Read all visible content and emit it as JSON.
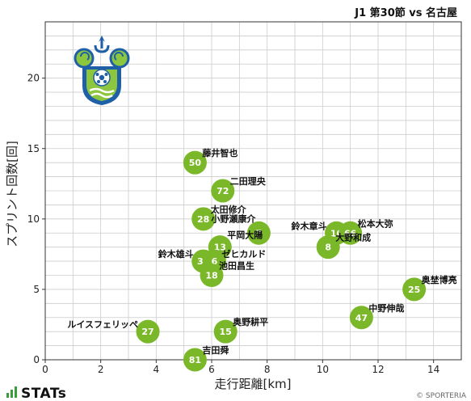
{
  "header": {
    "match_title": "J1 第30節 vs 名古屋"
  },
  "branding": {
    "logo_text": "STATs",
    "credit": "© SPORTERIA"
  },
  "colors": {
    "point_fill": "#7ab829",
    "grid": "#cccccc",
    "axis": "#333333"
  },
  "chart_data": {
    "type": "scatter",
    "xlabel": "走行距離[km]",
    "ylabel": "スプリント回数[回]",
    "xlim": [
      0,
      15
    ],
    "ylim": [
      0,
      24
    ],
    "x_ticks": [
      0,
      2,
      4,
      6,
      8,
      10,
      12,
      14
    ],
    "y_ticks": [
      0,
      5,
      10,
      15,
      20
    ],
    "grid": true,
    "points": [
      {
        "number": "50",
        "name": "藤井智也",
        "x": 5.4,
        "y": 14
      },
      {
        "number": "72",
        "name": "二田理央",
        "x": 6.4,
        "y": 12
      },
      {
        "number": "28",
        "name": "太田修介",
        "x": 5.7,
        "y": 10
      },
      {
        "number": "7",
        "name": "小野瀬康介",
        "x": 7.7,
        "y": 9
      },
      {
        "number": "13",
        "name": "平岡大陽",
        "x": 6.3,
        "y": 8
      },
      {
        "number": "37",
        "name": "鈴木雄斗",
        "x": 5.7,
        "y": 7
      },
      {
        "number": "6",
        "name": "ゼヒカルド",
        "x": 6.1,
        "y": 7
      },
      {
        "number": "18",
        "name": "池田昌生",
        "x": 6.0,
        "y": 6
      },
      {
        "number": "10",
        "name": "鈴木章斗",
        "x": 10.5,
        "y": 9
      },
      {
        "number": "66",
        "name": "松本大弥",
        "x": 11.0,
        "y": 9
      },
      {
        "number": "8",
        "name": "大野和成",
        "x": 10.2,
        "y": 8
      },
      {
        "number": "25",
        "name": "奥埜博亮",
        "x": 13.3,
        "y": 5
      },
      {
        "number": "47",
        "name": "中野伸哉",
        "x": 11.4,
        "y": 3
      },
      {
        "number": "27",
        "name": "ルイスフェリッペ",
        "x": 3.7,
        "y": 2
      },
      {
        "number": "15",
        "name": "奥野耕平",
        "x": 6.5,
        "y": 2
      },
      {
        "number": "81",
        "name": "吉田舜",
        "x": 5.4,
        "y": 0
      }
    ]
  }
}
